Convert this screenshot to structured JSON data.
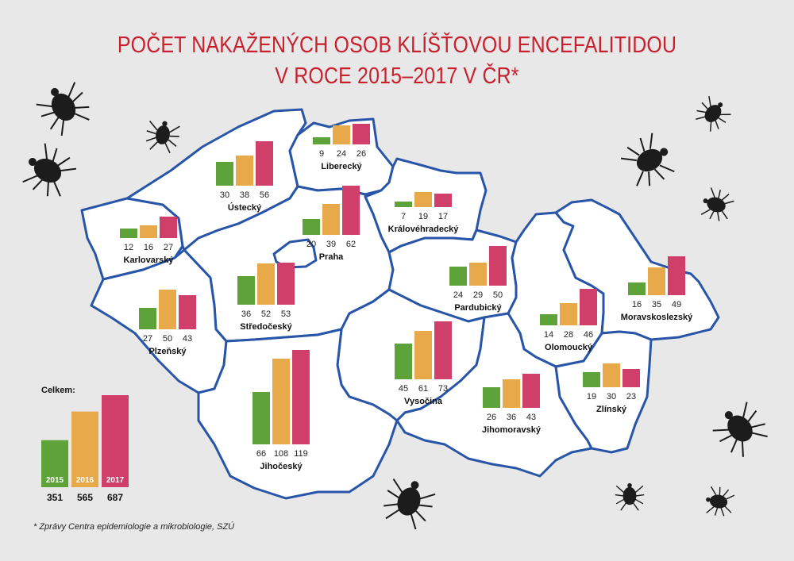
{
  "title": {
    "line1": "POČET NAKAŽENÝCH OSOB KLÍŠŤOVOU ENCEFALITIDOU",
    "line2": "V ROCE 2015–2017 V ČR*"
  },
  "footnote": "* Zprávy Centra epidemiologie a mikrobiologie, SZÚ",
  "colors": {
    "2015": "#5ea33a",
    "2016": "#e8a94a",
    "2017": "#cf3f6a",
    "border": "#2855a8",
    "region_fill": "#ffffff",
    "background": "#e8e8e8"
  },
  "chart_data": {
    "type": "bar",
    "years": [
      "2015",
      "2016",
      "2017"
    ],
    "regions": [
      {
        "name": "Karlovarský",
        "values": [
          12,
          16,
          27
        ]
      },
      {
        "name": "Ústecký",
        "values": [
          30,
          38,
          56
        ]
      },
      {
        "name": "Liberecký",
        "values": [
          9,
          24,
          26
        ]
      },
      {
        "name": "Královéhradecký",
        "values": [
          7,
          19,
          17
        ]
      },
      {
        "name": "Praha",
        "values": [
          20,
          39,
          62
        ]
      },
      {
        "name": "Středočeský",
        "values": [
          36,
          52,
          53
        ]
      },
      {
        "name": "Plzeňský",
        "values": [
          27,
          50,
          43
        ]
      },
      {
        "name": "Pardubický",
        "values": [
          24,
          29,
          50
        ]
      },
      {
        "name": "Olomoucký",
        "values": [
          14,
          28,
          46
        ]
      },
      {
        "name": "Moravskoslezský",
        "values": [
          16,
          35,
          49
        ]
      },
      {
        "name": "Vysočina",
        "values": [
          45,
          61,
          73
        ]
      },
      {
        "name": "Jihočeský",
        "values": [
          66,
          108,
          119
        ]
      },
      {
        "name": "Jihomoravský",
        "values": [
          26,
          36,
          43
        ]
      },
      {
        "name": "Zlínský",
        "values": [
          19,
          30,
          23
        ]
      }
    ],
    "totals": {
      "label": "Celkem:",
      "values": [
        351,
        565,
        687
      ]
    }
  }
}
